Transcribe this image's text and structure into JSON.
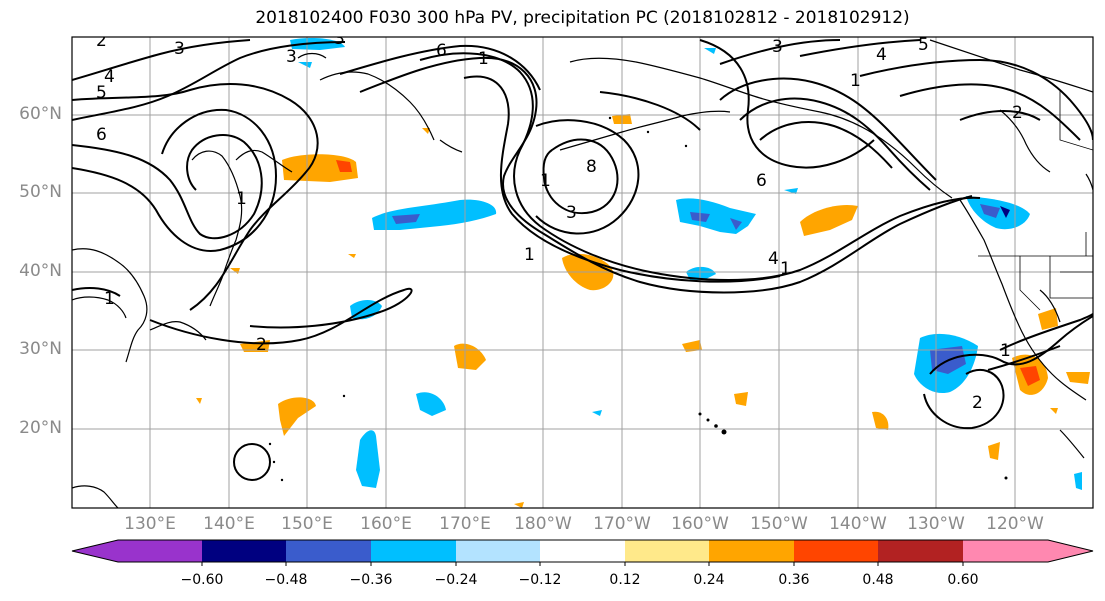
{
  "title": "2018102400 F030 300 hPa PV, precipitation PC (2018102812 - 2018102912)",
  "map": {
    "lat_labels": [
      "60°N",
      "50°N",
      "40°N",
      "30°N",
      "20°N"
    ],
    "lon_labels": [
      "130°E",
      "140°E",
      "150°E",
      "160°E",
      "170°E",
      "180°W",
      "170°W",
      "160°W",
      "150°W",
      "140°W",
      "130°W",
      "120°W"
    ],
    "contour_labels": [
      "2",
      "3",
      "4",
      "5",
      "6",
      "3",
      "3",
      "6",
      "1",
      "3",
      "4",
      "5",
      "1",
      "2",
      "1",
      "8",
      "6",
      "3",
      "1",
      "4",
      "1",
      "1",
      "2",
      "2",
      "1",
      "1"
    ]
  },
  "colorbar": {
    "ticks": [
      "−0.60",
      "−0.48",
      "−0.36",
      "−0.24",
      "−0.12",
      "0.12",
      "0.24",
      "0.36",
      "0.48",
      "0.60"
    ],
    "colors": [
      "#9933cc",
      "#000080",
      "#3a5ccc",
      "#00bfff",
      "#b3e3ff",
      "#ffffff",
      "#ffe98a",
      "#ffa500",
      "#ff4500",
      "#b22222",
      "#ff88b0"
    ]
  }
}
